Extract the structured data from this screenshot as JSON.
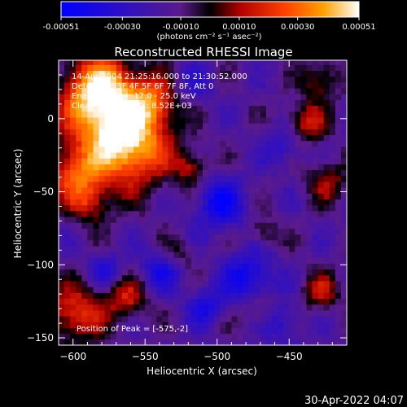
{
  "chart_data": {
    "type": "heatmap",
    "title": "Reconstructed RHESSI Image",
    "xlabel": "Heliocentric X (arcsec)",
    "ylabel": "Heliocentric Y (arcsec)",
    "xlim": [
      -610,
      -410
    ],
    "ylim": [
      -155,
      40
    ],
    "xticks": [
      -600,
      -550,
      -500,
      -450
    ],
    "yticks": [
      -150,
      -100,
      -50,
      0
    ],
    "grid": false,
    "colorbar": {
      "label": "(photons cm⁻² s⁻¹ asec⁻²)",
      "min": -0.00051,
      "max": 0.00051,
      "ticks": [
        "-0.00051",
        "-0.00030",
        "-0.00010",
        "0.00010",
        "0.00030",
        "0.00051"
      ],
      "tick_values": [
        -0.00051,
        -0.0003,
        -0.0001,
        0.0001,
        0.0003,
        0.00051
      ]
    },
    "annotations": [
      "14-Apr-2004 21:25:16.000 to 21:30:52.000",
      "Detectors: 3F 4F 5F 6F 7F 8F, Att 0",
      "Energy Range: 12.0 - 25.0 keV",
      "Clean     Total counts: 8.52E+03"
    ],
    "peak_label": "Position of Peak = [-575,-2]",
    "peak_position": [
      -575,
      -2
    ]
  },
  "timestamp": "30-Apr-2022 04:07"
}
